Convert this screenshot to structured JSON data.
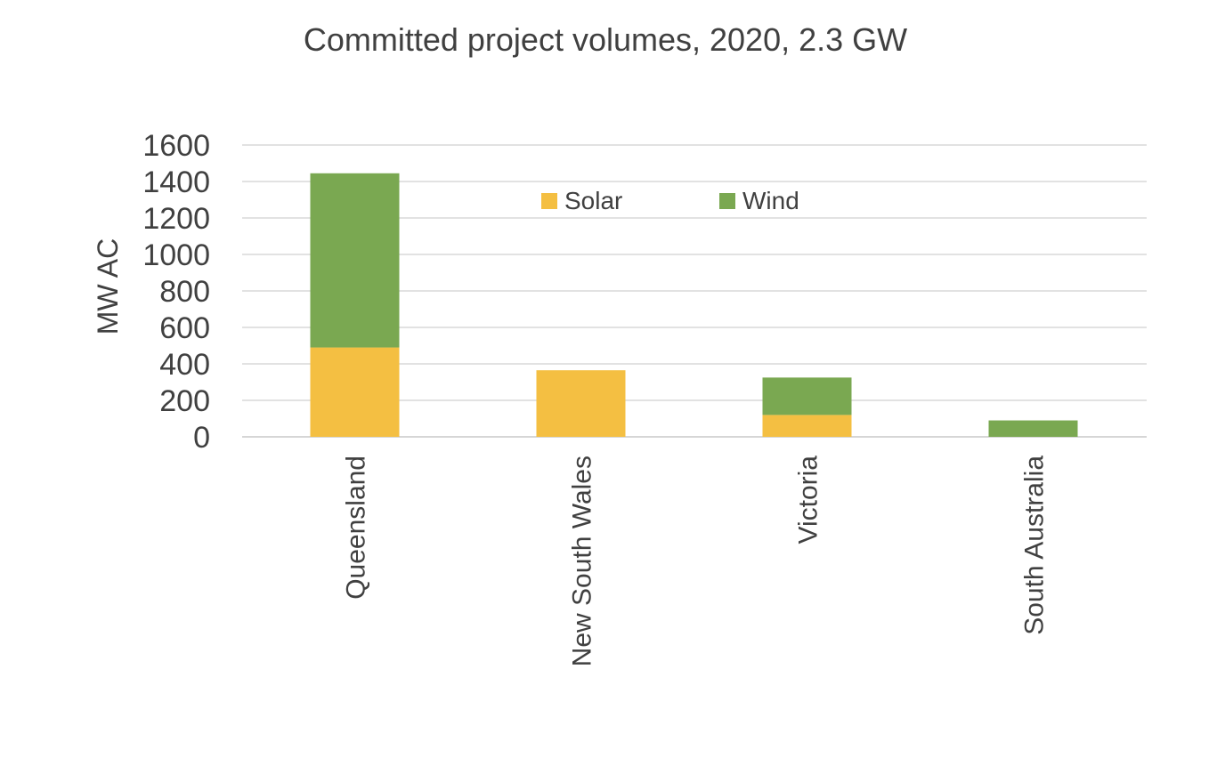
{
  "chart_data": {
    "type": "bar",
    "stacked": true,
    "title": "Committed project volumes, 2020, 2.3 GW",
    "xlabel": "",
    "ylabel": "MW AC",
    "ylim": [
      0,
      1600
    ],
    "yticks": [
      0,
      200,
      400,
      600,
      800,
      1000,
      1200,
      1400,
      1600
    ],
    "grid": true,
    "legend": "top-center",
    "categories": [
      "Queensland",
      "New South Wales",
      "Victoria",
      "South Australia"
    ],
    "series": [
      {
        "name": "Solar",
        "color": "#F4BF42",
        "values": [
          490,
          365,
          120,
          0
        ]
      },
      {
        "name": "Wind",
        "color": "#7AA851",
        "values": [
          955,
          0,
          205,
          90
        ]
      }
    ]
  }
}
